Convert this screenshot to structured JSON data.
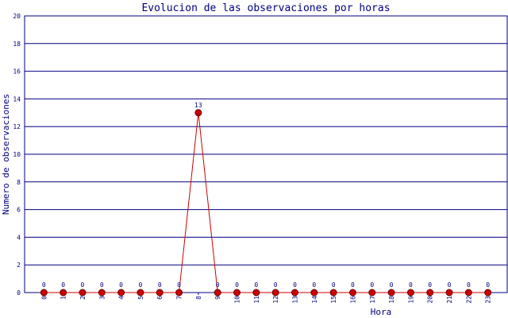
{
  "chart_data": {
    "type": "line",
    "title": "Evolucion de las observaciones por horas",
    "x_label": "Hora",
    "y_label": "Numero de observaciones",
    "x": [
      0,
      1,
      2,
      3,
      4,
      5,
      6,
      7,
      8,
      9,
      10,
      11,
      12,
      13,
      14,
      15,
      16,
      17,
      18,
      19,
      20,
      21,
      22,
      23
    ],
    "xlim": [
      -1,
      24
    ],
    "series": [
      {
        "color": "#cc0000",
        "values": [
          0,
          0,
          0,
          0,
          0,
          0,
          0,
          0,
          13,
          0,
          0,
          0,
          0,
          0,
          0,
          0,
          0,
          0,
          0,
          0,
          0,
          0,
          0,
          0
        ]
      }
    ],
    "ylim": [
      0,
      20
    ],
    "yticks": [
      0,
      2,
      4,
      6,
      8,
      10,
      12,
      14,
      16,
      18,
      20
    ],
    "grid": true
  }
}
